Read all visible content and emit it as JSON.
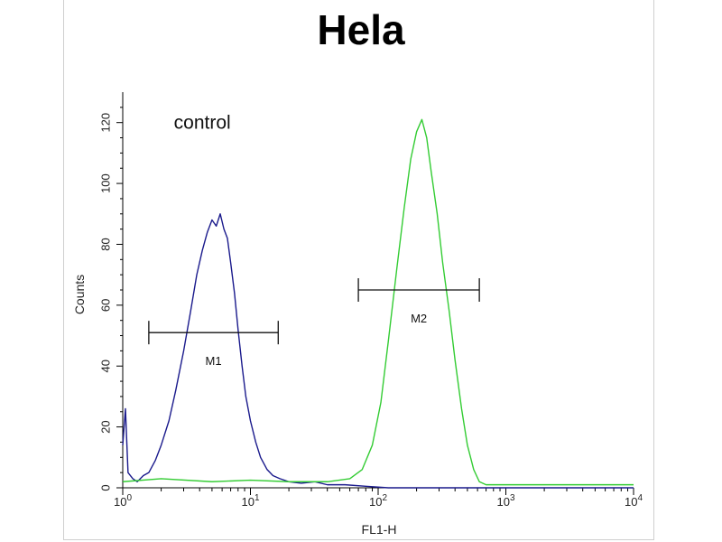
{
  "chart_data": {
    "type": "line",
    "title": "Hela",
    "xlabel": "FL1-H",
    "ylabel": "Counts",
    "x_scale": "log",
    "xlim": [
      1,
      10000
    ],
    "ylim": [
      0,
      130
    ],
    "x_ticks": [
      {
        "value": 1,
        "label": "10",
        "exp": "0"
      },
      {
        "value": 10,
        "label": "10",
        "exp": "1"
      },
      {
        "value": 100,
        "label": "10",
        "exp": "2"
      },
      {
        "value": 1000,
        "label": "10",
        "exp": "3"
      },
      {
        "value": 10000,
        "label": "10",
        "exp": "4"
      }
    ],
    "y_ticks": [
      0,
      20,
      40,
      60,
      80,
      100,
      120
    ],
    "grid": false,
    "annotations": [
      {
        "text": "control",
        "x": 4.2,
        "y": 120
      }
    ],
    "markers": [
      {
        "label": "M1",
        "x_start": 1.6,
        "x_end": 16.5,
        "y": 51
      },
      {
        "label": "M2",
        "x_start": 70,
        "x_end": 620,
        "y": 65
      }
    ],
    "series": [
      {
        "color": "#1a1a8c",
        "x": [
          1,
          1.05,
          1.1,
          1.2,
          1.3,
          1.45,
          1.6,
          1.8,
          2.0,
          2.3,
          2.6,
          3.0,
          3.4,
          3.8,
          4.2,
          4.6,
          5.0,
          5.4,
          5.8,
          6.2,
          6.6,
          7.0,
          7.5,
          8.0,
          8.6,
          9.2,
          10,
          11,
          12,
          13.5,
          15,
          17,
          20,
          25,
          32,
          40,
          55,
          80,
          120,
          10000
        ],
        "y": [
          14,
          26,
          5,
          3,
          2,
          4,
          5,
          9,
          14,
          22,
          32,
          45,
          58,
          70,
          78,
          84,
          88,
          86,
          90,
          85,
          82,
          74,
          64,
          52,
          40,
          30,
          22,
          15,
          10,
          6,
          4,
          3,
          2,
          1.5,
          2,
          1,
          1,
          0.5,
          0,
          0
        ]
      },
      {
        "color": "#33cc33",
        "x": [
          1,
          2,
          5,
          10,
          20,
          40,
          60,
          75,
          90,
          105,
          120,
          140,
          160,
          180,
          200,
          220,
          240,
          260,
          290,
          320,
          360,
          400,
          450,
          500,
          560,
          620,
          700,
          10000
        ],
        "y": [
          2,
          3,
          2,
          2.5,
          2,
          2,
          3,
          6,
          14,
          28,
          48,
          72,
          92,
          108,
          117,
          121,
          115,
          104,
          90,
          74,
          58,
          42,
          26,
          14,
          6,
          2,
          1,
          1
        ]
      }
    ]
  }
}
